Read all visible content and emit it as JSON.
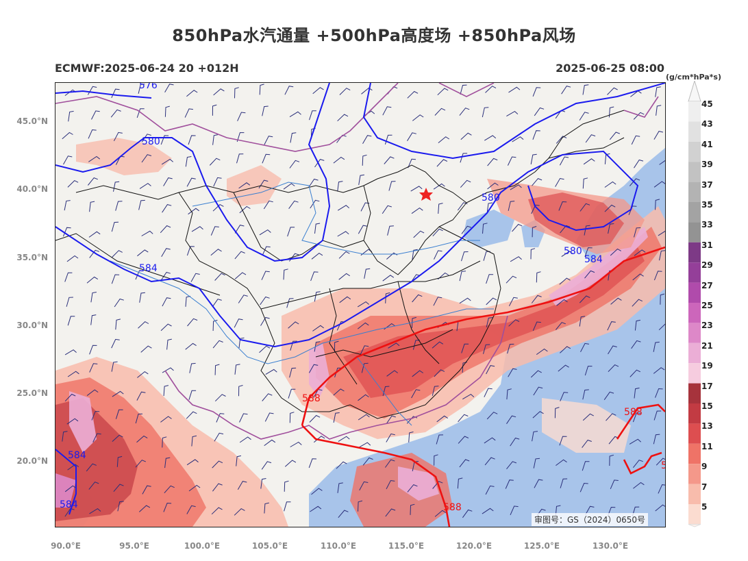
{
  "header": {
    "title": "850hPa水汽通量 +500hPa高度场 +850hPa风场",
    "model_run": "ECMWF:2025-06-24 20 +012H",
    "valid_time": "2025-06-25 08:00"
  },
  "map": {
    "lat_labels": [
      "45.0°N",
      "40.0°N",
      "35.0°N",
      "30.0°N",
      "25.0°N",
      "20.0°N"
    ],
    "lon_labels": [
      "90.0°E",
      "95.0°E",
      "100.0°E",
      "105.0°E",
      "110.0°E",
      "115.0°E",
      "120.0°E",
      "125.0°E",
      "130.0°E"
    ],
    "contour_labels": {
      "c576": "576",
      "c580a": "580",
      "c580b": "580",
      "c580c": "580",
      "c584a": "584",
      "c584b": "584",
      "c584c": "584",
      "c584d": "584",
      "c588a": "588",
      "c588b": "588",
      "c588c": "588",
      "c5x": "5"
    },
    "review_number": "审图号：GS（2024）0650号",
    "colors": {
      "height_low": "#1a1aee",
      "height_588": "#ee1111",
      "ocean": "#a8c4ea",
      "land": "#f3f2ee",
      "marker": "#ee2222"
    }
  },
  "colorbar": {
    "unit": "(g/cm*hPa*s)",
    "labels": [
      "45",
      "43",
      "41",
      "39",
      "37",
      "35",
      "33",
      "31",
      "29",
      "27",
      "25",
      "23",
      "21",
      "19",
      "17",
      "15",
      "13",
      "11",
      "9",
      "7",
      "5"
    ],
    "colors": [
      "#efefef",
      "#e1e1e1",
      "#d1d1d1",
      "#c2c2c2",
      "#b3b3b3",
      "#a3a3a3",
      "#939393",
      "#7d3a86",
      "#943f99",
      "#b04bab",
      "#cc66bb",
      "#dd88c8",
      "#ebaed6",
      "#f6ccdf",
      "#a6333c",
      "#c23b43",
      "#dd4e50",
      "#ef7367",
      "#f4988a",
      "#f8bcac",
      "#fbdcd0"
    ]
  }
}
